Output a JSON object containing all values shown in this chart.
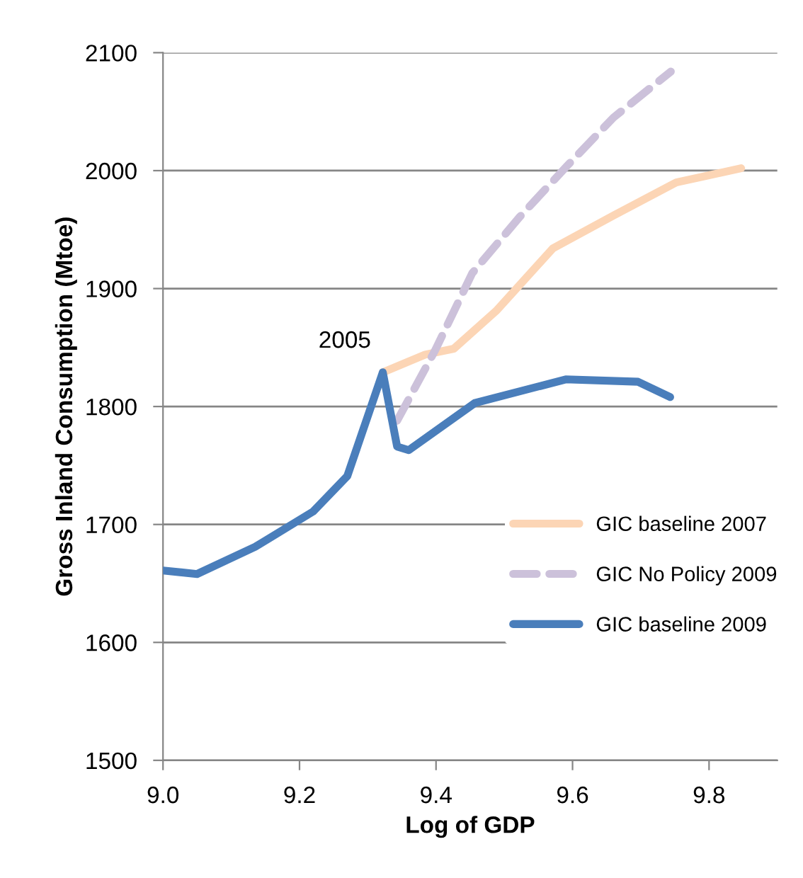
{
  "chart_data": {
    "type": "line",
    "xlabel": "Log of GDP",
    "ylabel": "Gross Inland Consumption (Mtoe)",
    "xlim": [
      9.0,
      9.9
    ],
    "xticks": [
      {
        "value": 9.0,
        "label": "9.0"
      },
      {
        "value": 9.2,
        "label": "9.2"
      },
      {
        "value": 9.4,
        "label": "9.4"
      },
      {
        "value": 9.6,
        "label": "9.6"
      },
      {
        "value": 9.8,
        "label": "9.8"
      }
    ],
    "ylim": [
      1500,
      2100
    ],
    "yticks": [
      1500,
      1600,
      1700,
      1800,
      1900,
      2000,
      2100
    ],
    "grid": "y",
    "legend": "bottom right",
    "line_style": "solid",
    "marker": "none",
    "annotations": [
      {
        "text": "2005",
        "x": 9.322,
        "y": 1829
      }
    ],
    "series": [
      {
        "name": "GIC baseline 2007",
        "color": "#fcd5b5",
        "x": [
          9.322,
          9.384,
          9.426,
          9.488,
          9.571,
          9.66,
          9.752,
          9.847
        ],
        "values": [
          1829,
          1844,
          1849,
          1881,
          1934,
          1962,
          1990,
          2002
        ]
      },
      {
        "name": "GIC No Policy 2009",
        "color": "#ccc1da",
        "line_style": "dashed",
        "x": [
          9.343,
          9.399,
          9.453,
          9.523,
          9.592,
          9.66,
          9.744
        ],
        "values": [
          1788,
          1848,
          1913,
          1961,
          2004,
          2045,
          2084
        ]
      },
      {
        "name": "GIC baseline 2009",
        "color": "#4a7ebb",
        "x": [
          9.0,
          9.05,
          9.135,
          9.22,
          9.27,
          9.322,
          9.333,
          9.343,
          9.36,
          9.457,
          9.59,
          9.696,
          9.743
        ],
        "values": [
          1661,
          1658,
          1681,
          1711,
          1741,
          1829,
          1796,
          1766,
          1763,
          1803,
          1823,
          1821,
          1808
        ]
      }
    ]
  }
}
